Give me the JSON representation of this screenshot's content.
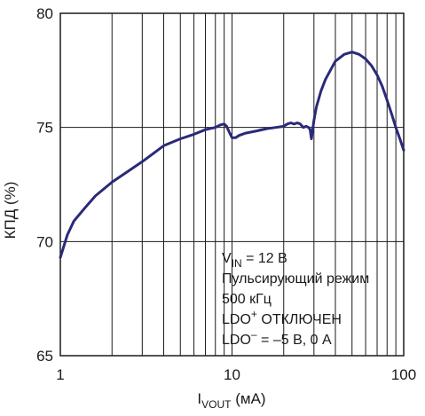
{
  "chart_data": {
    "type": "line",
    "xscale": "log",
    "xlim": [
      1,
      100
    ],
    "ylim": [
      65,
      80
    ],
    "grid": true,
    "xticks": [
      "1",
      "10",
      "100"
    ],
    "yticks": [
      "65",
      "70",
      "75",
      "80"
    ],
    "ylabel": "КПД (%)",
    "xlabel": {
      "main": "I",
      "sub": "VOUT",
      "unit": " (мА)"
    },
    "annotation": {
      "line1": {
        "a": "V",
        "b": "IN",
        "c": " = 12 В"
      },
      "line2": "Пульсирующий режим",
      "line3": "500 кГц",
      "line4": {
        "a": "LDO",
        "b": "+",
        "c": " ОТКЛЮЧЕН"
      },
      "line5": {
        "a": "LDO",
        "b": "–",
        "c": " = –5 В, 0 А"
      }
    },
    "line_color": "#2a2a7a",
    "series": [
      {
        "x": [
          1,
          1.1,
          1.2,
          1.4,
          1.6,
          2,
          2.5,
          3,
          4,
          5,
          6,
          7,
          8,
          8.5,
          9,
          9.3,
          9.7,
          10,
          10.5,
          11,
          12,
          14,
          16,
          18,
          20,
          21,
          22,
          23,
          24,
          25,
          26,
          27,
          28,
          28.5,
          29,
          29.5,
          30,
          31,
          33,
          35,
          38,
          40,
          45,
          50,
          55,
          60,
          65,
          70,
          75,
          80,
          85,
          90,
          95,
          100
        ],
        "y": [
          69.3,
          70.3,
          70.9,
          71.5,
          72,
          72.6,
          73.1,
          73.5,
          74.2,
          74.5,
          74.7,
          74.9,
          75.0,
          75.1,
          75.15,
          75.05,
          74.75,
          74.55,
          74.55,
          74.65,
          74.75,
          74.85,
          74.95,
          75.0,
          75.05,
          75.15,
          75.2,
          75.15,
          75.2,
          75.15,
          75.0,
          75.05,
          75.0,
          74.9,
          74.5,
          74.9,
          75.3,
          75.9,
          76.6,
          77.1,
          77.6,
          77.9,
          78.2,
          78.3,
          78.2,
          78.0,
          77.7,
          77.3,
          76.8,
          76.2,
          75.6,
          75.0,
          74.5,
          74.0
        ]
      }
    ]
  }
}
